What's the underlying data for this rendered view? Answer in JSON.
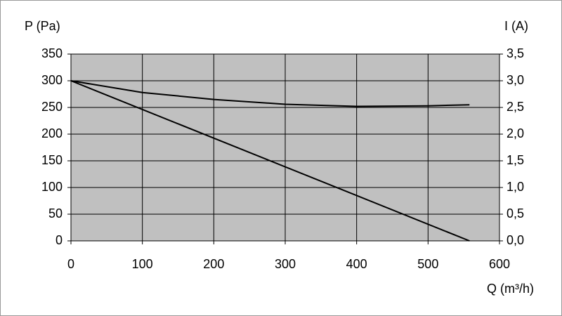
{
  "chart_data": {
    "type": "line",
    "y_label": "P (Pa)",
    "y2_label": "I (A)",
    "x_label": "Q (m³/h)",
    "xlim": [
      0,
      600
    ],
    "xticks": [
      0,
      100,
      200,
      300,
      400,
      500,
      600
    ],
    "ylim": [
      0,
      350
    ],
    "yticks": [
      0,
      50,
      100,
      150,
      200,
      250,
      300,
      350
    ],
    "y2lim": [
      0,
      3.5
    ],
    "y2ticks": [
      {
        "value": 0,
        "label": "0,0"
      },
      {
        "value": 0.5,
        "label": "0,5"
      },
      {
        "value": 1,
        "label": "1,0"
      },
      {
        "value": 1.5,
        "label": "1,5"
      },
      {
        "value": 2,
        "label": "2,0"
      },
      {
        "value": 2.5,
        "label": "2,5"
      },
      {
        "value": 3,
        "label": "3,0"
      },
      {
        "value": 3.5,
        "label": "3,5"
      }
    ],
    "grid": true,
    "series": [
      {
        "color": "#000000",
        "x": [
          0,
          558
        ],
        "values": [
          300,
          0
        ]
      },
      {
        "color": "#000000",
        "axis": "y2",
        "x": [
          0,
          100,
          200,
          300,
          400,
          500,
          558
        ],
        "values": [
          3.0,
          2.78,
          2.65,
          2.56,
          2.52,
          2.53,
          2.55
        ]
      }
    ]
  }
}
